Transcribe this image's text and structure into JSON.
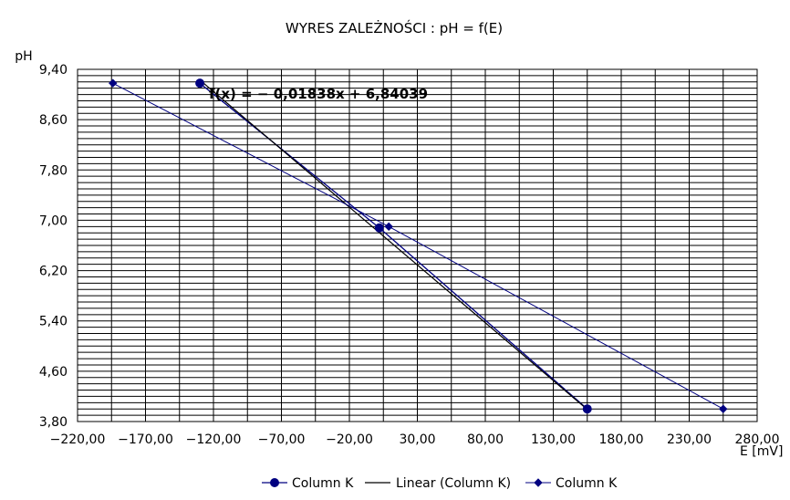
{
  "chart_data": {
    "type": "scatter",
    "title": "WYRES ZALEŻNOŚCI :  pH = f(E)",
    "ylabel": "pH",
    "xlabel": "E [mV]",
    "xlim": [
      -220,
      280
    ],
    "ylim": [
      3.8,
      9.4
    ],
    "x_ticks": [
      "−220,00",
      "−170,00",
      "−120,00",
      "−70,00",
      "−20,00",
      "30,00",
      "80,00",
      "130,00",
      "180,00",
      "230,00",
      "280,00"
    ],
    "y_ticks": [
      "9,40",
      "8,60",
      "7,80",
      "7,00",
      "6,20",
      "5,40",
      "4,60",
      "3,80"
    ],
    "grid": true,
    "equation_label": "f(x) = − 0,01838x + 6,84039",
    "legend_position": "bottom",
    "series": [
      {
        "name": "Column K",
        "marker": "circle",
        "color": "#000080",
        "points": [
          [
            -130,
            9.18
          ],
          [
            2,
            6.88
          ],
          [
            155,
            4.0
          ]
        ]
      },
      {
        "name": "Linear (Column K)",
        "kind": "trendline",
        "color": "#000000",
        "slope": -0.01838,
        "intercept": 6.84039,
        "x_range": [
          -130,
          155
        ]
      },
      {
        "name": "Column K",
        "marker": "diamond",
        "color": "#000080",
        "points": [
          [
            -194,
            9.18
          ],
          [
            9,
            6.9
          ],
          [
            255,
            4.0
          ]
        ]
      }
    ]
  }
}
